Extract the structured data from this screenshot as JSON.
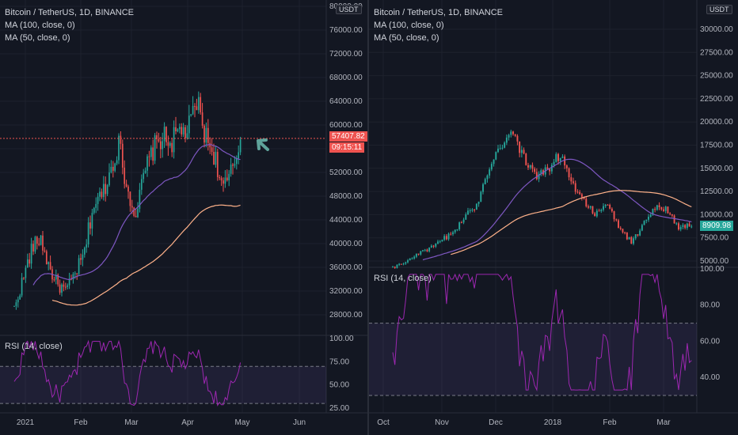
{
  "left": {
    "legend": {
      "title": "Bitcoin / TetherUS, 1D, BINANCE",
      "ma100": "MA (100, close, 0)",
      "ma50": "MA (50, close, 0)"
    },
    "currency": "USDT",
    "price_labels": [
      "80000.00",
      "76000.00",
      "72000.00",
      "68000.00",
      "64000.00",
      "60000.00",
      "56000.00",
      "52000.00",
      "48000.00",
      "44000.00",
      "40000.00",
      "36000.00",
      "32000.00",
      "28000.00"
    ],
    "current_price": "57407.82",
    "countdown": "09:15:11",
    "rsi_label": "RSI (14, close)",
    "rsi_labels": [
      "100.00",
      "75.00",
      "50.00",
      "25.00"
    ],
    "time_labels": [
      "2021",
      "Feb",
      "Mar",
      "Apr",
      "May",
      "Jun"
    ],
    "colors": {
      "up": "#26a69a",
      "down": "#ef5350",
      "ma50": "#7e57c2",
      "ma100": "#ffb28a",
      "rsi": "#9c27b0",
      "arrow": "#5fa39b"
    }
  },
  "right": {
    "legend": {
      "title": "Bitcoin / TetherUS, 1D, BINANCE",
      "ma100": "MA (100, close, 0)",
      "ma50": "MA (50, close, 0)"
    },
    "currency": "USDT",
    "price_labels": [
      "30000.00",
      "27500.00",
      "25000.00",
      "22500.00",
      "20000.00",
      "17500.00",
      "15000.00",
      "12500.00",
      "10000.00",
      "7500.00",
      "5000.00"
    ],
    "current_price": "8909.98",
    "rsi_label": "RSI (14, close)",
    "rsi_labels": [
      "100.00",
      "80.00",
      "60.00",
      "40.00"
    ],
    "time_labels": [
      "Oct",
      "Nov",
      "Dec",
      "2018",
      "Feb",
      "Mar"
    ]
  },
  "chart_data": [
    {
      "type": "candlestick",
      "title": "Bitcoin / TetherUS, 1D, BINANCE",
      "indicators": [
        "MA (100, close, 0)",
        "MA (50, close, 0)",
        "RSI (14, close)"
      ],
      "x_range": [
        "2021-01",
        "2021-06"
      ],
      "ylim": [
        28000,
        80000
      ],
      "last_price": 57407.82,
      "approx_closes": [
        29000,
        34000,
        39000,
        41000,
        36000,
        33000,
        32000,
        35000,
        38000,
        46000,
        48000,
        52000,
        57000,
        49000,
        45000,
        52000,
        56000,
        58000,
        57000,
        59000,
        59000,
        64000,
        58000,
        55000,
        49000,
        52000,
        57400
      ]
    },
    {
      "type": "candlestick",
      "title": "Bitcoin / TetherUS, 1D, BINANCE",
      "indicators": [
        "MA (100, close, 0)",
        "MA (50, close, 0)",
        "RSI (14, close)"
      ],
      "x_range": [
        "2017-10",
        "2018-03"
      ],
      "ylim": [
        5000,
        30000
      ],
      "last_price": 8909.98,
      "approx_closes": [
        4300,
        4800,
        5800,
        6200,
        7200,
        8000,
        9700,
        11000,
        15000,
        17500,
        19000,
        16000,
        14000,
        15000,
        16500,
        13500,
        11500,
        10000,
        11000,
        8500,
        7000,
        9000,
        11000,
        10500,
        8500,
        8909
      ]
    }
  ]
}
